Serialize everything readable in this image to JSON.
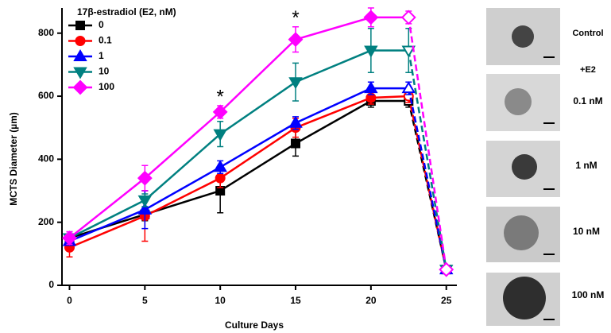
{
  "chart_data": {
    "type": "line",
    "y_label": "MCTS Diameter (µm)",
    "x_label": "Culture Days",
    "legend_title": "17β-estradiol (E2, nM)",
    "legend": "upper-left",
    "x": [
      0,
      5,
      10,
      15,
      20,
      22.5,
      25
    ],
    "series": [
      {
        "name": "0",
        "color": "#000000",
        "marker": "square",
        "values": [
          150,
          225,
          300,
          450,
          585,
          585,
          50
        ],
        "errors": [
          10,
          20,
          70,
          40,
          20,
          20,
          0
        ]
      },
      {
        "name": "0.1",
        "color": "#ff0000",
        "marker": "circle",
        "values": [
          120,
          220,
          340,
          500,
          595,
          600,
          50
        ],
        "errors": [
          30,
          80,
          30,
          30,
          20,
          20,
          0
        ]
      },
      {
        "name": "1",
        "color": "#0000ff",
        "marker": "triangle-up",
        "values": [
          140,
          240,
          375,
          515,
          625,
          625,
          50
        ],
        "errors": [
          10,
          60,
          20,
          20,
          20,
          20,
          0
        ]
      },
      {
        "name": "10",
        "color": "#008080",
        "marker": "triangle-down",
        "values": [
          150,
          270,
          480,
          645,
          745,
          745,
          50
        ],
        "errors": [
          20,
          20,
          40,
          60,
          70,
          70,
          0
        ]
      },
      {
        "name": "100",
        "color": "#ff00ff",
        "marker": "diamond",
        "values": [
          150,
          340,
          550,
          780,
          850,
          850,
          50
        ],
        "errors": [
          20,
          40,
          20,
          40,
          30,
          20,
          0
        ]
      }
    ],
    "annotations": [
      {
        "text": "*",
        "x": 10
      },
      {
        "text": "*",
        "x": 15
      },
      {
        "text": "*",
        "x": 20
      }
    ],
    "xlim": [
      -0.5,
      25.7
    ],
    "xticks": [
      0,
      5,
      10,
      15,
      20,
      25
    ],
    "ylim": [
      0,
      880
    ],
    "yticks": [
      0,
      200,
      400,
      600,
      800
    ]
  },
  "side_panel": {
    "labels": [
      "Control",
      "+E2",
      "0.1 nM",
      "1 nM",
      "10 nM",
      "100 nM"
    ]
  }
}
